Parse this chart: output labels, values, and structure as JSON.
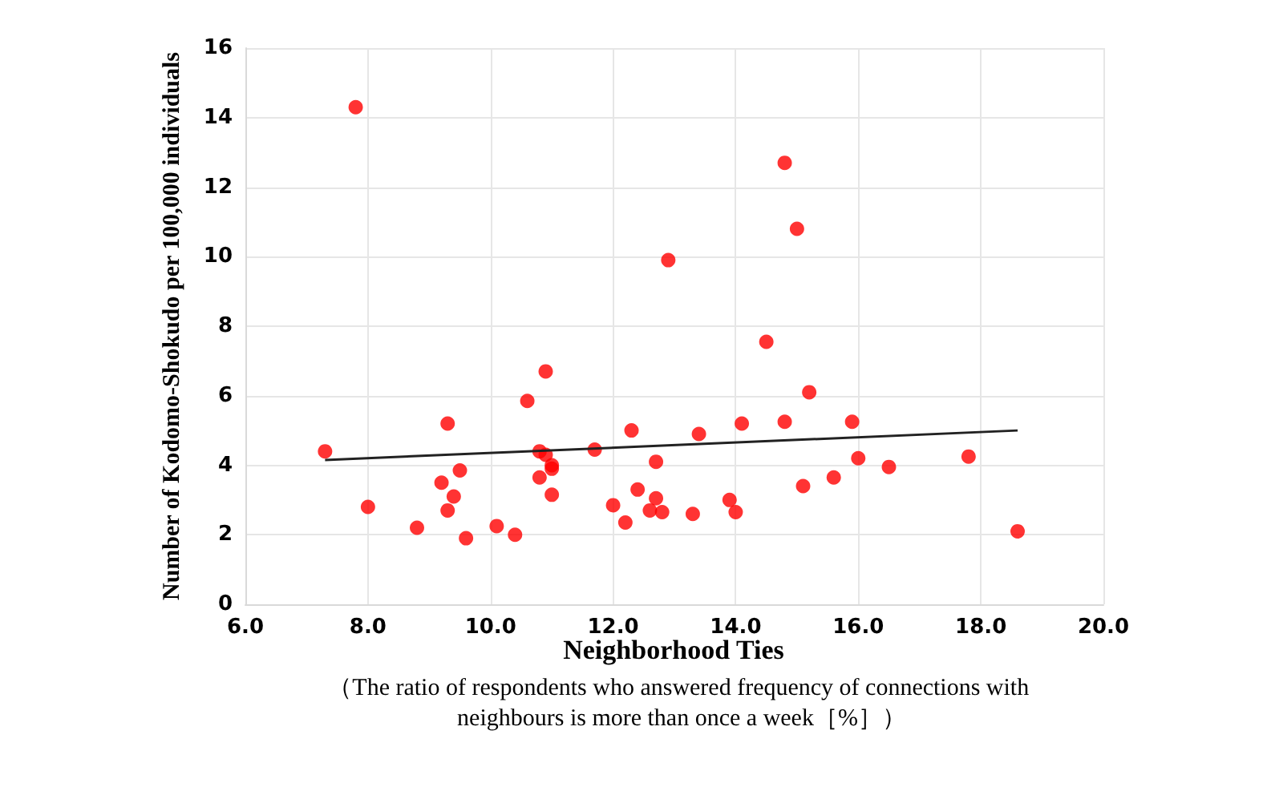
{
  "chart_data": {
    "type": "scatter",
    "xlabel": "Neighborhood Ties",
    "ylabel": "Number of Kodomo-Shokudo per 100,000 individuals",
    "annotations": [
      "（The ratio of respondents who answered frequency of connections with neighbours is more than once a week［%］）"
    ],
    "xlim": [
      6,
      20
    ],
    "xticks": [
      {
        "value": 6,
        "label": "6.0"
      },
      {
        "value": 8,
        "label": "8.0"
      },
      {
        "value": 10,
        "label": "10.0"
      },
      {
        "value": 12,
        "label": "12.0"
      },
      {
        "value": 14,
        "label": "14.0"
      },
      {
        "value": 16,
        "label": "16.0"
      },
      {
        "value": 18,
        "label": "18.0"
      },
      {
        "value": 20,
        "label": "20.0"
      }
    ],
    "ylim": [
      0,
      16
    ],
    "yticks": [
      0,
      2,
      4,
      6,
      8,
      10,
      12,
      14,
      16
    ],
    "grid": true,
    "marker": "circle",
    "series": [
      {
        "color": "#ff0000",
        "x": [
          7.3,
          7.8,
          8.0,
          8.8,
          9.2,
          9.3,
          9.3,
          9.4,
          9.5,
          9.6,
          10.1,
          10.4,
          10.6,
          10.8,
          10.8,
          10.9,
          10.9,
          11.0,
          11.0,
          11.0,
          11.7,
          12.0,
          12.2,
          12.3,
          12.4,
          12.6,
          12.7,
          12.7,
          12.8,
          12.9,
          13.3,
          13.4,
          13.9,
          14.0,
          14.1,
          14.5,
          14.8,
          14.8,
          15.0,
          15.1,
          15.2,
          15.6,
          15.9,
          16.0,
          16.5,
          17.8,
          18.6
        ],
        "values": [
          4.4,
          14.3,
          2.8,
          2.2,
          3.5,
          5.2,
          2.7,
          3.1,
          3.85,
          1.9,
          2.25,
          2.0,
          5.85,
          4.4,
          3.65,
          6.7,
          4.3,
          4.0,
          3.9,
          3.15,
          4.45,
          2.85,
          2.35,
          5.0,
          3.3,
          2.7,
          4.1,
          3.05,
          2.65,
          9.9,
          2.6,
          4.9,
          3.0,
          2.65,
          5.2,
          7.55,
          12.7,
          5.25,
          10.8,
          3.4,
          6.1,
          3.65,
          5.25,
          4.2,
          3.95,
          4.25,
          2.1
        ]
      },
      {
        "type": "line",
        "color": "#222222",
        "x": [
          7.3,
          18.6
        ],
        "values": [
          4.15,
          5.0
        ],
        "marker": "none",
        "line_style": "solid"
      }
    ]
  }
}
